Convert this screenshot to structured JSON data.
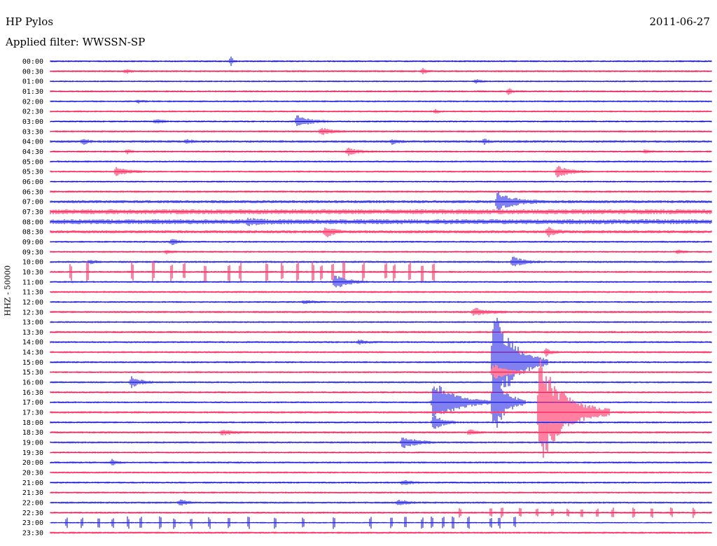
{
  "header": {
    "station": "HP Pylos",
    "date": "2011-06-27",
    "filter": "Applied filter: WWSSN-SP",
    "channel_label": "HHZ - 50000"
  },
  "colors": {
    "trace_even": "#0000e0",
    "trace_odd": "#ff0040"
  },
  "chart_data": {
    "type": "line",
    "title": "HP Pylos",
    "subtitle": "Applied filter: WWSSN-SP",
    "date": "2011-06-27",
    "ylabel": "HHZ - 50000",
    "xlabel": "",
    "x_unit": "minutes",
    "x_range": [
      0,
      30
    ],
    "grid": false,
    "legend": "none",
    "rows": [
      "00:00",
      "00:30",
      "01:00",
      "01:30",
      "02:00",
      "02:30",
      "03:00",
      "03:30",
      "04:00",
      "04:30",
      "05:00",
      "05:30",
      "06:00",
      "06:30",
      "07:00",
      "07:30",
      "08:00",
      "08:30",
      "09:00",
      "09:30",
      "10:00",
      "10:30",
      "11:00",
      "11:30",
      "12:00",
      "12:30",
      "13:00",
      "13:30",
      "14:00",
      "14:30",
      "15:00",
      "15:30",
      "16:00",
      "16:30",
      "17:00",
      "17:30",
      "18:00",
      "18:30",
      "19:00",
      "19:30",
      "20:00",
      "20:30",
      "21:00",
      "21:30",
      "22:00",
      "22:30",
      "23:00",
      "23:30"
    ],
    "noise_level": [
      1.5,
      1.5,
      1.3,
      1.5,
      1.4,
      1.4,
      1.5,
      1.5,
      1.8,
      1.5,
      1.5,
      1.4,
      1.4,
      1.6,
      2.2,
      3.5,
      3.5,
      2.2,
      1.5,
      1.4,
      1.6,
      1.5,
      1.4,
      1.5,
      1.4,
      1.6,
      1.4,
      1.6,
      1.5,
      1.5,
      1.5,
      1.4,
      1.5,
      1.5,
      1.4,
      1.6,
      1.5,
      1.6,
      1.5,
      1.4,
      1.5,
      1.4,
      1.5,
      1.4,
      1.5,
      1.5,
      1.0,
      1.5
    ],
    "events": [
      {
        "row": 0,
        "minute": 8.2,
        "amplitude": 6,
        "duration": 0.3
      },
      {
        "row": 1,
        "minute": 3.4,
        "amplitude": 3,
        "duration": 0.5
      },
      {
        "row": 1,
        "minute": 16.9,
        "amplitude": 4,
        "duration": 0.4
      },
      {
        "row": 2,
        "minute": 19.3,
        "amplitude": 3,
        "duration": 0.5
      },
      {
        "row": 3,
        "minute": 20.8,
        "amplitude": 4,
        "duration": 0.5
      },
      {
        "row": 4,
        "minute": 4.0,
        "amplitude": 2,
        "duration": 0.5
      },
      {
        "row": 5,
        "minute": 17.5,
        "amplitude": 2.5,
        "duration": 0.4
      },
      {
        "row": 6,
        "minute": 11.2,
        "amplitude": 8,
        "duration": 1.5
      },
      {
        "row": 6,
        "minute": 4.8,
        "amplitude": 3,
        "duration": 0.6
      },
      {
        "row": 7,
        "minute": 12.3,
        "amplitude": 5,
        "duration": 1.2
      },
      {
        "row": 8,
        "minute": 1.5,
        "amplitude": 4,
        "duration": 0.5
      },
      {
        "row": 8,
        "minute": 6.2,
        "amplitude": 3,
        "duration": 0.5
      },
      {
        "row": 8,
        "minute": 15.5,
        "amplitude": 3,
        "duration": 0.7
      },
      {
        "row": 8,
        "minute": 19.7,
        "amplitude": 4,
        "duration": 0.4
      },
      {
        "row": 9,
        "minute": 3.5,
        "amplitude": 3,
        "duration": 0.4
      },
      {
        "row": 9,
        "minute": 13.5,
        "amplitude": 5,
        "duration": 1.2
      },
      {
        "row": 9,
        "minute": 27.0,
        "amplitude": 3,
        "duration": 0.5
      },
      {
        "row": 11,
        "minute": 3.0,
        "amplitude": 6,
        "duration": 1.3
      },
      {
        "row": 11,
        "minute": 23.0,
        "amplitude": 8,
        "duration": 1.5
      },
      {
        "row": 14,
        "minute": 20.3,
        "amplitude": 14,
        "duration": 1.8
      },
      {
        "row": 16,
        "minute": 9.0,
        "amplitude": 3,
        "duration": 1.5
      },
      {
        "row": 17,
        "minute": 12.5,
        "amplitude": 8,
        "duration": 0.8
      },
      {
        "row": 17,
        "minute": 22.6,
        "amplitude": 6,
        "duration": 0.8
      },
      {
        "row": 18,
        "minute": 5.5,
        "amplitude": 4,
        "duration": 0.8
      },
      {
        "row": 19,
        "minute": 5.3,
        "amplitude": 3,
        "duration": 0.5
      },
      {
        "row": 19,
        "minute": 28.5,
        "amplitude": 3,
        "duration": 0.5
      },
      {
        "row": 20,
        "minute": 1.8,
        "amplitude": 3,
        "duration": 0.5
      },
      {
        "row": 20,
        "minute": 21.0,
        "amplitude": 8,
        "duration": 1.2
      },
      {
        "row": 22,
        "minute": 12.9,
        "amplitude": 10,
        "duration": 1.5
      },
      {
        "row": 24,
        "minute": 11.5,
        "amplitude": 2.5,
        "duration": 1.0
      },
      {
        "row": 25,
        "minute": 19.2,
        "amplitude": 6,
        "duration": 1.5
      },
      {
        "row": 28,
        "minute": 14.0,
        "amplitude": 3,
        "duration": 0.8
      },
      {
        "row": 29,
        "minute": 21.0,
        "amplitude": 3,
        "duration": 0.8
      },
      {
        "row": 29,
        "minute": 22.5,
        "amplitude": 5,
        "duration": 0.6
      },
      {
        "row": 30,
        "minute": 20.1,
        "amplitude": 80,
        "duration": 2.5
      },
      {
        "row": 31,
        "minute": 20.1,
        "amplitude": 12,
        "duration": 1.5
      },
      {
        "row": 32,
        "minute": 3.7,
        "amplitude": 8,
        "duration": 1.0
      },
      {
        "row": 34,
        "minute": 17.4,
        "amplitude": 30,
        "duration": 2.8
      },
      {
        "row": 34,
        "minute": 20.1,
        "amplitude": 50,
        "duration": 1.5
      },
      {
        "row": 35,
        "minute": 22.2,
        "amplitude": 78,
        "duration": 3.2
      },
      {
        "row": 36,
        "minute": 17.4,
        "amplitude": 12,
        "duration": 1.0
      },
      {
        "row": 37,
        "minute": 7.8,
        "amplitude": 4,
        "duration": 1.2
      },
      {
        "row": 37,
        "minute": 19.0,
        "amplitude": 4,
        "duration": 0.8
      },
      {
        "row": 38,
        "minute": 16.0,
        "amplitude": 9,
        "duration": 1.5
      },
      {
        "row": 40,
        "minute": 2.8,
        "amplitude": 4,
        "duration": 0.6
      },
      {
        "row": 42,
        "minute": 16.0,
        "amplitude": 3,
        "duration": 1.0
      },
      {
        "row": 44,
        "minute": 5.9,
        "amplitude": 6,
        "duration": 0.6
      },
      {
        "row": 44,
        "minute": 15.8,
        "amplitude": 4,
        "duration": 1.0
      }
    ],
    "spike_rows": [
      {
        "row": 21,
        "minutes": [
          0.9,
          1.7,
          3.7,
          4.7,
          5.5,
          6.1,
          7.0,
          8.1,
          8.6,
          9.8,
          10.5,
          11.2,
          11.9,
          12.3,
          12.8,
          13.3,
          14.2,
          15.2,
          15.6,
          16.3,
          16.9,
          17.4
        ],
        "amplitude": 14
      },
      {
        "row": 45,
        "minutes": [
          18.6,
          20.0,
          20.5,
          21.3,
          22.1,
          22.8,
          23.5,
          24.1,
          24.8,
          25.5,
          26.5,
          27.3,
          28.2,
          29.2
        ],
        "amplitude": 6
      },
      {
        "row": 46,
        "minutes": [
          0.7,
          1.4,
          2.2,
          2.8,
          3.5,
          4.1,
          5.0,
          5.6,
          6.4,
          7.2,
          8.1,
          9.0,
          10.2,
          11.5,
          12.9,
          14.5,
          15.5,
          16.1,
          16.9,
          17.3,
          17.8,
          18.3,
          19.0,
          20.0,
          20.4,
          21.1
        ],
        "amplitude": 8
      }
    ]
  }
}
